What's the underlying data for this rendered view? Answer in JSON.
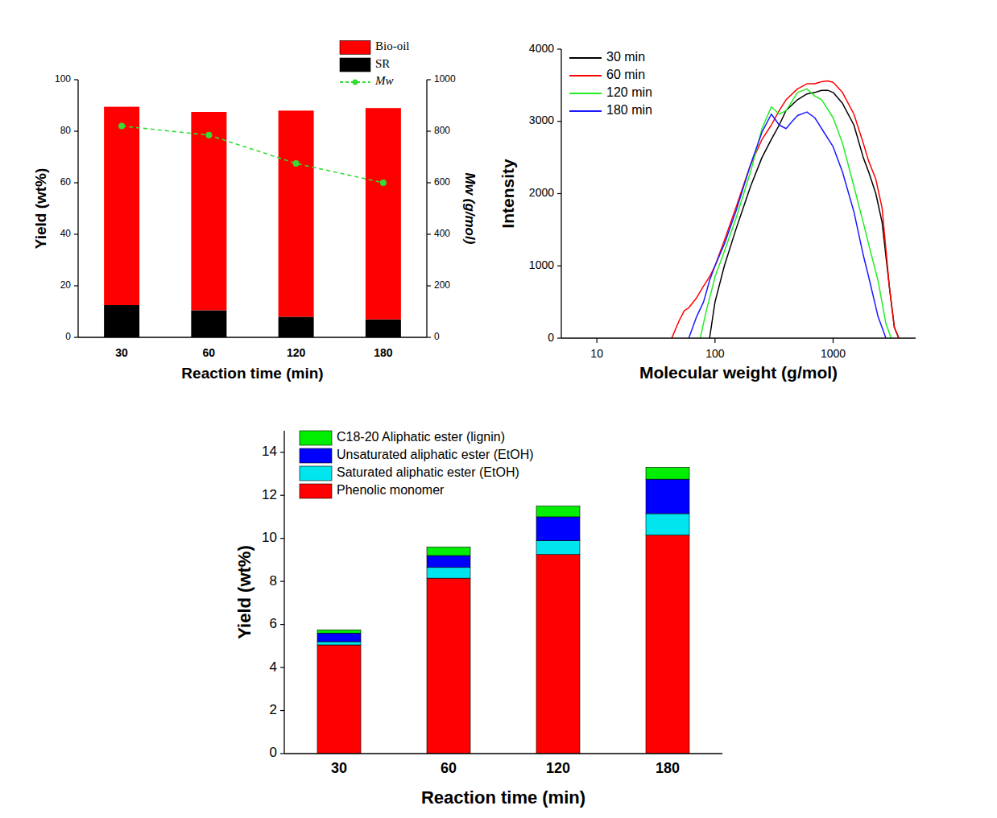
{
  "chart_data": [
    {
      "type": "bar",
      "stacked": true,
      "categories": [
        "30",
        "60",
        "120",
        "180"
      ],
      "x_label": "Reaction time (min)",
      "y_label": "Yield (wt%)",
      "y2_label": "Mw (g/mol)",
      "ylim": [
        0,
        100
      ],
      "yticks": [
        0,
        20,
        40,
        60,
        80,
        100
      ],
      "y2lim": [
        0,
        1000
      ],
      "y2ticks": [
        0,
        200,
        400,
        600,
        800,
        1000
      ],
      "legend": "top-right",
      "series": [
        {
          "name": "SR",
          "color": "#000000",
          "values": [
            12.5,
            10.5,
            8,
            7
          ]
        },
        {
          "name": "Bio-oil",
          "color": "#ff0000",
          "values": [
            77,
            77,
            80,
            82
          ]
        },
        {
          "name": "Mw",
          "type": "line",
          "axis": "y2",
          "color": "#33dd33",
          "marker": "circle",
          "line_style": "dashed",
          "values": [
            820,
            785,
            675,
            600
          ]
        }
      ]
    },
    {
      "type": "line",
      "log": "x",
      "x_label": "Molecular weight (g/mol)",
      "y_label": "Intensity",
      "xlim": [
        5,
        5000
      ],
      "xticks": [
        10,
        100,
        1000
      ],
      "ylim": [
        0,
        4000
      ],
      "yticks": [
        0,
        1000,
        2000,
        3000,
        4000
      ],
      "legend": "top-left",
      "series": [
        {
          "name": "30 min",
          "color": "#000000",
          "x": [
            90,
            100,
            120,
            150,
            200,
            250,
            300,
            350,
            400,
            500,
            600,
            700,
            800,
            900,
            1000,
            1200,
            1500,
            1800,
            2000,
            2300,
            2600,
            3000,
            3300,
            3600
          ],
          "values": [
            0,
            500,
            1000,
            1500,
            2100,
            2500,
            2750,
            2950,
            3150,
            3300,
            3380,
            3400,
            3430,
            3430,
            3400,
            3250,
            2950,
            2500,
            2300,
            2000,
            1600,
            700,
            150,
            0
          ]
        },
        {
          "name": "60 min",
          "color": "#ff0000",
          "x": [
            43,
            50,
            55,
            60,
            70,
            80,
            90,
            100,
            120,
            150,
            200,
            250,
            300,
            350,
            400,
            500,
            600,
            700,
            800,
            900,
            1000,
            1200,
            1500,
            1800,
            2000,
            2300,
            2600,
            3000,
            3300,
            3600
          ],
          "values": [
            0,
            250,
            380,
            420,
            560,
            720,
            850,
            1000,
            1350,
            1800,
            2400,
            2750,
            2950,
            3150,
            3300,
            3450,
            3520,
            3520,
            3550,
            3560,
            3540,
            3400,
            3100,
            2700,
            2450,
            2200,
            1800,
            700,
            150,
            0
          ]
        },
        {
          "name": "120 min",
          "color": "#22ee22",
          "x": [
            75,
            85,
            95,
            100,
            120,
            150,
            200,
            250,
            300,
            350,
            400,
            500,
            600,
            700,
            800,
            1000,
            1200,
            1500,
            1800,
            2000,
            2400,
            2800,
            3100
          ],
          "values": [
            0,
            400,
            700,
            850,
            1200,
            1650,
            2300,
            2900,
            3200,
            3100,
            3150,
            3400,
            3450,
            3350,
            3300,
            3050,
            2700,
            2100,
            1600,
            1300,
            800,
            200,
            0
          ]
        },
        {
          "name": "180 min",
          "color": "#1a1aff",
          "x": [
            60,
            70,
            80,
            90,
            100,
            120,
            150,
            200,
            250,
            300,
            350,
            400,
            450,
            500,
            600,
            700,
            800,
            1000,
            1200,
            1500,
            1800,
            2000,
            2400,
            2800
          ],
          "values": [
            0,
            300,
            500,
            800,
            1000,
            1300,
            1750,
            2400,
            2850,
            3100,
            2950,
            2900,
            3000,
            3080,
            3130,
            3050,
            2900,
            2650,
            2300,
            1750,
            1150,
            850,
            300,
            0
          ]
        }
      ]
    },
    {
      "type": "bar",
      "stacked": true,
      "categories": [
        "30",
        "60",
        "120",
        "180"
      ],
      "x_label": "Reaction time (min)",
      "y_label": "Yield (wt%)",
      "ylim": [
        0,
        15
      ],
      "yticks": [
        0,
        2,
        4,
        6,
        8,
        10,
        12,
        14
      ],
      "legend": "top-left",
      "series": [
        {
          "name": "Phenolic monomer",
          "color": "#ff0000",
          "values": [
            5.05,
            8.15,
            9.25,
            10.15
          ]
        },
        {
          "name": "Saturated aliphatic ester (EtOH)",
          "color": "#00e5ee",
          "values": [
            0.15,
            0.5,
            0.65,
            1.0
          ]
        },
        {
          "name": "Unsaturated aliphatic ester (EtOH)",
          "color": "#0000ff",
          "values": [
            0.4,
            0.55,
            1.1,
            1.6
          ]
        },
        {
          "name": "C18-20 Aliphatic ester (lignin)",
          "color": "#00ee00",
          "values": [
            0.15,
            0.4,
            0.5,
            0.55
          ]
        }
      ]
    }
  ]
}
